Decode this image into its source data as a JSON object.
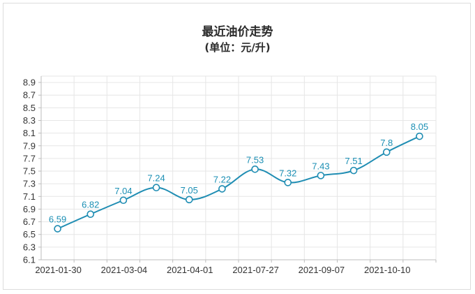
{
  "chart_data": {
    "type": "line",
    "title": "最近油价走势",
    "subtitle": "(单位：元/升)",
    "xlabel": "",
    "ylabel": "",
    "x": [
      "2021-01-30",
      "",
      "2021-03-04",
      "",
      "2021-04-01",
      "",
      "2021-07-27",
      "",
      "2021-09-07",
      "",
      "2021-10-10",
      ""
    ],
    "x_tick_labels": [
      "2021-01-30",
      "2021-03-04",
      "2021-04-01",
      "2021-07-27",
      "2021-09-07",
      "2021-10-10"
    ],
    "values": [
      6.59,
      6.82,
      7.04,
      7.24,
      7.05,
      7.22,
      7.53,
      7.32,
      7.43,
      7.51,
      7.8,
      8.05
    ],
    "data_labels": [
      "6.59",
      "6.82",
      "7.04",
      "7.24",
      "7.05",
      "7.22",
      "7.53",
      "7.32",
      "7.43",
      "7.51",
      "7.8",
      "8.05"
    ],
    "y_tick_labels": [
      "6.1",
      "6.3",
      "6.5",
      "6.7",
      "6.9",
      "7.1",
      "7.3",
      "7.5",
      "7.7",
      "7.9",
      "8.1",
      "8.3",
      "8.5",
      "8.7",
      "8.9"
    ],
    "ylim": [
      6.1,
      9.0
    ],
    "grid": true,
    "legend": "none",
    "colors": {
      "line": "#1f8db3",
      "marker_fill": "#ffffff",
      "label": "#1b8fb4",
      "grid": "#e6e6e6",
      "axis": "#bdbdbd"
    }
  }
}
